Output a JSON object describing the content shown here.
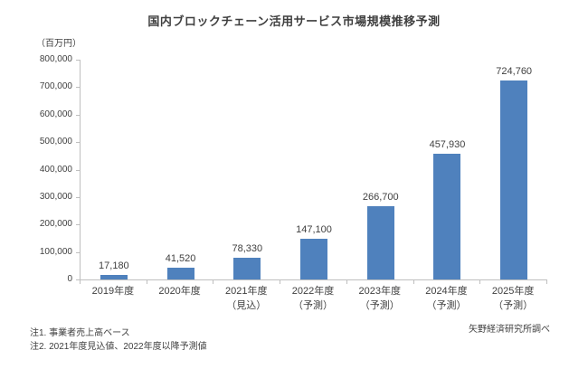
{
  "title": "国内ブロックチェーン活用サービス市場規模推移予測",
  "source": "矢野経済研究所調べ",
  "notes": [
    "注1. 事業者売上高ベース",
    "注2. 2021年度見込値、2022年度以降予測値"
  ],
  "chart_data": {
    "type": "bar",
    "title": "国内ブロックチェーン活用サービス市場規模推移予測",
    "unit_label": "（百万円）",
    "categories": [
      "2019年度",
      "2020年度",
      "2021年度",
      "2022年度",
      "2023年度",
      "2024年度",
      "2025年度"
    ],
    "category_sublabels": [
      "",
      "",
      "（見込）",
      "（予測）",
      "（予測）",
      "（予測）",
      "（予測）"
    ],
    "values": [
      17180,
      41520,
      78330,
      147100,
      266700,
      457930,
      724760
    ],
    "value_labels": [
      "17,180",
      "41,520",
      "78,330",
      "147,100",
      "266,700",
      "457,930",
      "724,760"
    ],
    "ylabel": "（百万円）",
    "ylim": [
      0,
      800000
    ],
    "ytick_step": 100000,
    "ytick_labels": [
      "800,000",
      "700,000",
      "600,000",
      "500,000",
      "400,000",
      "300,000",
      "200,000",
      "100,000",
      "0"
    ],
    "bar_color": "#4f81bd",
    "grid": "off",
    "legend": "none"
  }
}
